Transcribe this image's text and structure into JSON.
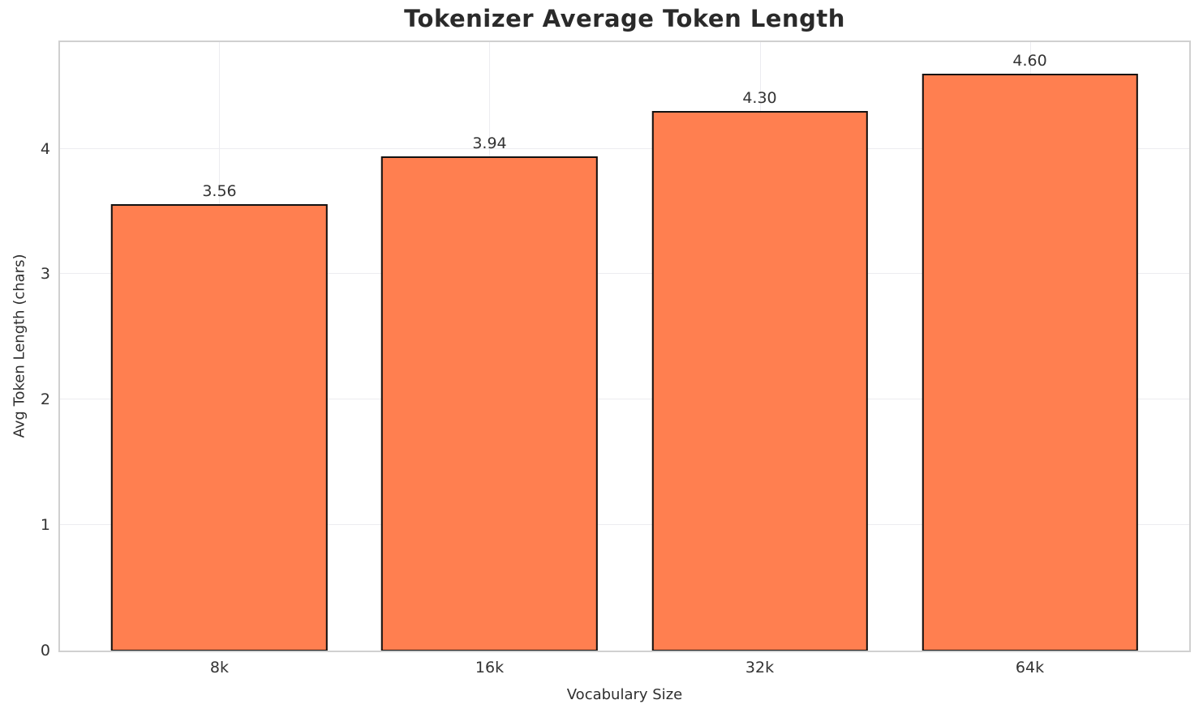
{
  "chart_data": {
    "type": "bar",
    "title": "Tokenizer Average Token Length",
    "xlabel": "Vocabulary Size",
    "ylabel": "Avg Token Length (chars)",
    "categories": [
      "8k",
      "16k",
      "32k",
      "64k"
    ],
    "values": [
      3.56,
      3.94,
      4.3,
      4.6
    ],
    "value_labels": [
      "3.56",
      "3.94",
      "4.30",
      "4.60"
    ],
    "ytick_labels": [
      "0",
      "1",
      "2",
      "3",
      "4"
    ],
    "yticks": [
      0,
      1,
      2,
      3,
      4
    ],
    "ylim": [
      0,
      4.85
    ],
    "xlim": [
      -0.59,
      3.59
    ],
    "bar_width_units": 0.8,
    "grid": true,
    "legend": "none",
    "colors": {
      "bar_fill": "#FF7F50",
      "bar_edge": "#111111",
      "grid_line": "#ececf0",
      "spine": "#d0d0d0",
      "title_text": "#2a2a2a",
      "tick_text": "#333333",
      "background": "#ffffff"
    }
  }
}
